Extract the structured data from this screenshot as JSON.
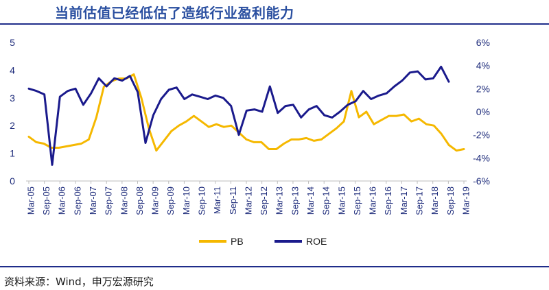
{
  "title": "当前估值已经低估了造纸行业盈利能力",
  "source": "资料来源：Wind，申万宏源研究",
  "colors": {
    "pb": "#f5b800",
    "roe": "#1a1a8c",
    "axis": "#1c2a7a",
    "title": "#2a4fa0"
  },
  "chart_data": {
    "type": "line",
    "title": "当前估值已经低估了造纸行业盈利能力",
    "y_left": {
      "ylim": [
        0,
        5
      ],
      "ticks": [
        "0",
        "1",
        "2",
        "3",
        "4",
        "5"
      ]
    },
    "y_right": {
      "ylim": [
        -6,
        6
      ],
      "ticks": [
        "-6%",
        "-4%",
        "-2%",
        "0%",
        "2%",
        "4%",
        "6%"
      ]
    },
    "x_tick_labels": [
      "Mar-05",
      "Sep-05",
      "Mar-06",
      "Sep-06",
      "Mar-07",
      "Sep-07",
      "Mar-08",
      "Sep-08",
      "Mar-09",
      "Sep-09",
      "Mar-10",
      "Sep-10",
      "Mar-11",
      "Sep-11",
      "Mar-12",
      "Sep-12",
      "Mar-13",
      "Sep-13",
      "Mar-14",
      "Sep-14",
      "Mar-15",
      "Sep-15",
      "Mar-16",
      "Sep-16",
      "Mar-17",
      "Sep-17",
      "Mar-18",
      "Sep-18",
      "Mar-19"
    ],
    "legend": [
      "PB",
      "ROE"
    ],
    "series": [
      {
        "name": "PB",
        "axis": "left",
        "values": [
          1.6,
          1.4,
          1.35,
          1.2,
          1.2,
          1.25,
          1.3,
          1.35,
          1.5,
          2.3,
          3.4,
          3.6,
          3.7,
          3.7,
          3.85,
          3.0,
          1.9,
          1.1,
          1.45,
          1.8,
          2.0,
          2.15,
          2.35,
          2.15,
          1.95,
          2.05,
          1.95,
          2.0,
          1.75,
          1.5,
          1.4,
          1.4,
          1.15,
          1.15,
          1.35,
          1.5,
          1.5,
          1.55,
          1.45,
          1.5,
          1.7,
          1.9,
          2.15,
          3.25,
          2.3,
          2.5,
          2.05,
          2.2,
          2.35,
          2.35,
          2.4,
          2.15,
          2.25,
          2.05,
          2.0,
          1.7,
          1.3,
          1.1,
          1.15
        ]
      },
      {
        "name": "ROE",
        "axis": "right",
        "values": [
          2.0,
          1.8,
          1.5,
          -4.6,
          1.3,
          1.8,
          2.0,
          0.6,
          1.6,
          2.9,
          2.2,
          2.9,
          2.7,
          3.1,
          1.7,
          -2.7,
          -0.3,
          1.1,
          1.9,
          2.1,
          1.1,
          1.5,
          1.3,
          1.1,
          1.4,
          1.2,
          0.5,
          -2.0,
          0.1,
          0.2,
          0.0,
          2.2,
          -0.1,
          0.5,
          0.6,
          -0.5,
          0.2,
          0.5,
          -0.3,
          -0.5,
          0.0,
          0.6,
          0.9,
          1.8,
          1.1,
          1.4,
          1.6,
          2.2,
          2.7,
          3.4,
          3.5,
          2.8,
          2.9,
          3.9,
          2.6
        ]
      }
    ]
  }
}
